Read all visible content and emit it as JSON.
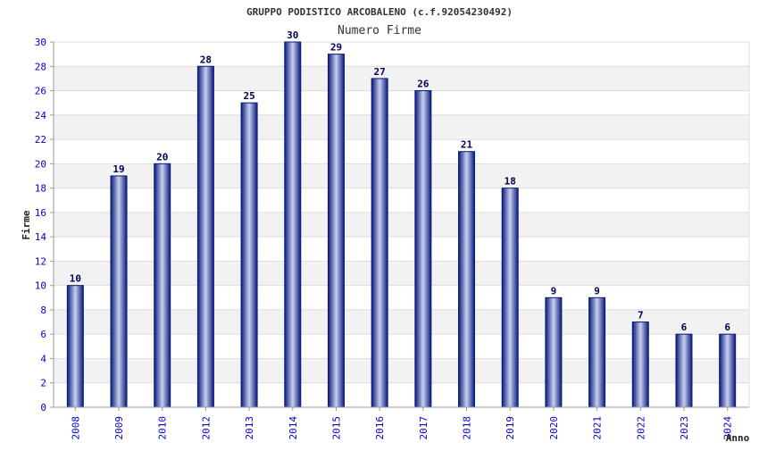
{
  "title": "GRUPPO PODISTICO ARCOBALENO (c.f.92054230492)",
  "chart_data": {
    "type": "bar",
    "title": "GRUPPO PODISTICO ARCOBALENO (c.f.92054230492)",
    "subtitle": "Numero Firme",
    "xlabel": "Anno",
    "ylabel": "Firme",
    "ylim": [
      0,
      30
    ],
    "yticks": [
      0,
      2,
      4,
      6,
      8,
      10,
      12,
      14,
      16,
      18,
      20,
      22,
      24,
      26,
      28,
      30
    ],
    "grid": true,
    "categories": [
      "2008",
      "2009",
      "2010",
      "2012",
      "2013",
      "2014",
      "2015",
      "2016",
      "2017",
      "2018",
      "2019",
      "2020",
      "2021",
      "2022",
      "2023",
      "2024"
    ],
    "series": [
      {
        "values": [
          10,
          19,
          20,
          28,
          25,
          30,
          29,
          27,
          26,
          21,
          18,
          9,
          9,
          7,
          6,
          6
        ]
      }
    ],
    "data_labels": true
  },
  "colors": {
    "bar_dark": "#0a1a7a",
    "bar_light": "#c8d0f0",
    "band": "#f2f2f2",
    "grid": "#dddddd",
    "tick_text": "#0000cc"
  }
}
